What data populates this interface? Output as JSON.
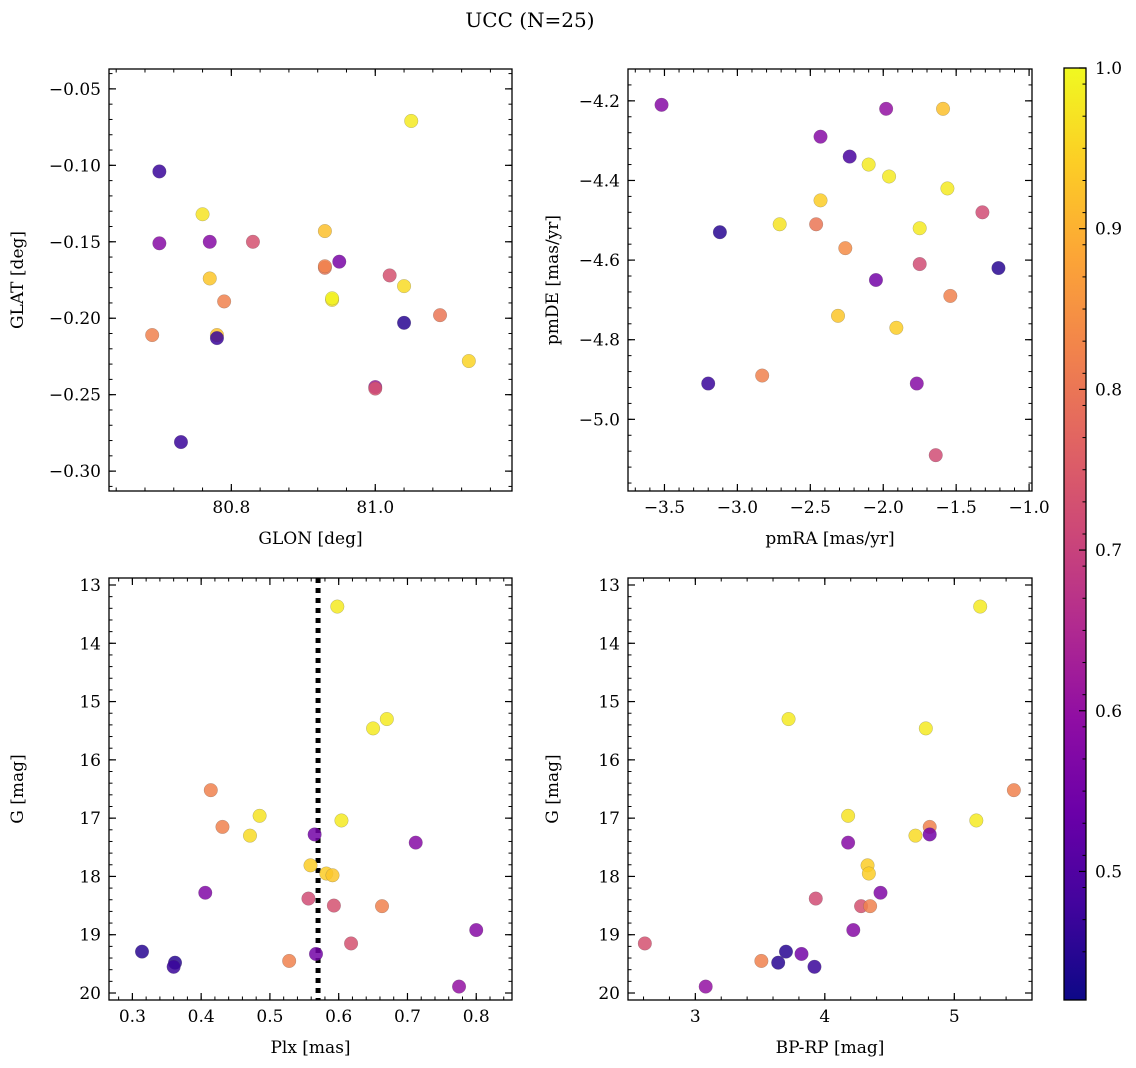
{
  "suptitle": "UCC (N=25)",
  "chart_data": [
    {
      "type": "scatter",
      "xlabel": "GLON [deg]",
      "ylabel": "GLAT [deg]",
      "xlim": [
        80.63,
        81.19
      ],
      "ylim": [
        -0.313,
        -0.037
      ],
      "xticks": [
        80.8,
        81.0
      ],
      "xtick_labels": [
        "80.8",
        "81.0"
      ],
      "yticks": [
        -0.05,
        -0.1,
        -0.15,
        -0.2,
        -0.25,
        -0.3
      ],
      "ytick_labels": [
        "−0.05",
        "−0.10",
        "−0.15",
        "−0.20",
        "−0.25",
        "−0.30"
      ],
      "points": [
        {
          "x": 81.05,
          "y": -0.071,
          "c": 0.98
        },
        {
          "x": 80.7,
          "y": -0.104,
          "c": 0.47
        },
        {
          "x": 80.76,
          "y": -0.132,
          "c": 0.97
        },
        {
          "x": 80.7,
          "y": -0.151,
          "c": 0.58
        },
        {
          "x": 80.77,
          "y": -0.15,
          "c": 0.58
        },
        {
          "x": 80.83,
          "y": -0.15,
          "c": 0.73
        },
        {
          "x": 80.93,
          "y": -0.143,
          "c": 0.92
        },
        {
          "x": 80.95,
          "y": -0.163,
          "c": 0.56
        },
        {
          "x": 80.93,
          "y": -0.167,
          "c": 0.8
        },
        {
          "x": 80.77,
          "y": -0.174,
          "c": 0.93
        },
        {
          "x": 81.02,
          "y": -0.172,
          "c": 0.73
        },
        {
          "x": 81.04,
          "y": -0.179,
          "c": 0.96
        },
        {
          "x": 80.79,
          "y": -0.189,
          "c": 0.82
        },
        {
          "x": 80.94,
          "y": -0.188,
          "c": 0.97
        },
        {
          "x": 81.04,
          "y": -0.203,
          "c": 0.45
        },
        {
          "x": 81.09,
          "y": -0.198,
          "c": 0.8
        },
        {
          "x": 80.69,
          "y": -0.211,
          "c": 0.82
        },
        {
          "x": 80.78,
          "y": -0.211,
          "c": 0.92
        },
        {
          "x": 80.78,
          "y": -0.213,
          "c": 0.47
        },
        {
          "x": 81.13,
          "y": -0.228,
          "c": 0.95
        },
        {
          "x": 81.0,
          "y": -0.245,
          "c": 0.62
        },
        {
          "x": 81.0,
          "y": -0.246,
          "c": 0.73
        },
        {
          "x": 80.73,
          "y": -0.281,
          "c": 0.47
        },
        {
          "x": 80.94,
          "y": -0.187,
          "c": 0.99
        },
        {
          "x": 80.93,
          "y": -0.166,
          "c": 0.82
        }
      ]
    },
    {
      "type": "scatter",
      "xlabel": "pmRA [mas/yr]",
      "ylabel": "pmDE [mas/yr]",
      "xlim": [
        -3.75,
        -0.98
      ],
      "ylim": [
        -5.18,
        -4.12
      ],
      "xticks": [
        -3.5,
        -3.0,
        -2.5,
        -2.0,
        -1.5,
        -1.0
      ],
      "xtick_labels": [
        "−3.5",
        "−3.0",
        "−2.5",
        "−2.0",
        "−1.5",
        "−1.0"
      ],
      "yticks": [
        -4.2,
        -4.4,
        -4.6,
        -4.8,
        -5.0
      ],
      "ytick_labels": [
        "−4.2",
        "−4.4",
        "−4.6",
        "−4.8",
        "−5.0"
      ],
      "points": [
        {
          "x": -3.52,
          "y": -4.21,
          "c": 0.58
        },
        {
          "x": -1.98,
          "y": -4.22,
          "c": 0.6
        },
        {
          "x": -1.59,
          "y": -4.22,
          "c": 0.92
        },
        {
          "x": -2.43,
          "y": -4.29,
          "c": 0.58
        },
        {
          "x": -2.23,
          "y": -4.34,
          "c": 0.49
        },
        {
          "x": -2.1,
          "y": -4.36,
          "c": 0.98
        },
        {
          "x": -1.96,
          "y": -4.39,
          "c": 0.98
        },
        {
          "x": -1.56,
          "y": -4.42,
          "c": 0.98
        },
        {
          "x": -2.43,
          "y": -4.45,
          "c": 0.94
        },
        {
          "x": -1.32,
          "y": -4.48,
          "c": 0.72
        },
        {
          "x": -2.71,
          "y": -4.51,
          "c": 0.97
        },
        {
          "x": -2.46,
          "y": -4.51,
          "c": 0.8
        },
        {
          "x": -1.75,
          "y": -4.52,
          "c": 0.98
        },
        {
          "x": -3.12,
          "y": -4.53,
          "c": 0.45
        },
        {
          "x": -2.26,
          "y": -4.57,
          "c": 0.84
        },
        {
          "x": -1.75,
          "y": -4.61,
          "c": 0.72
        },
        {
          "x": -1.21,
          "y": -4.62,
          "c": 0.45
        },
        {
          "x": -2.05,
          "y": -4.65,
          "c": 0.55
        },
        {
          "x": -1.54,
          "y": -4.69,
          "c": 0.82
        },
        {
          "x": -2.31,
          "y": -4.74,
          "c": 0.93
        },
        {
          "x": -1.91,
          "y": -4.77,
          "c": 0.94
        },
        {
          "x": -2.83,
          "y": -4.89,
          "c": 0.82
        },
        {
          "x": -3.2,
          "y": -4.91,
          "c": 0.47
        },
        {
          "x": -1.77,
          "y": -4.91,
          "c": 0.58
        },
        {
          "x": -1.64,
          "y": -5.09,
          "c": 0.72
        }
      ]
    },
    {
      "type": "scatter",
      "xlabel": "Plx [mas]",
      "ylabel": "G [mag]",
      "xlim": [
        0.266,
        0.852
      ],
      "ylim": [
        20.12,
        12.88
      ],
      "y_inverted": true,
      "vline": {
        "x": 0.57,
        "style": "dotted",
        "color": "#000000"
      },
      "xticks": [
        0.3,
        0.4,
        0.5,
        0.6,
        0.7,
        0.8
      ],
      "xtick_labels": [
        "0.3",
        "0.4",
        "0.5",
        "0.6",
        "0.7",
        "0.8"
      ],
      "yticks": [
        13,
        14,
        15,
        16,
        17,
        18,
        19,
        20
      ],
      "ytick_labels": [
        "13",
        "14",
        "15",
        "16",
        "17",
        "18",
        "19",
        "20"
      ],
      "points": [
        {
          "x": 0.598,
          "y": 13.37,
          "c": 0.98
        },
        {
          "x": 0.67,
          "y": 15.3,
          "c": 0.98
        },
        {
          "x": 0.65,
          "y": 15.46,
          "c": 0.98
        },
        {
          "x": 0.414,
          "y": 16.52,
          "c": 0.82
        },
        {
          "x": 0.485,
          "y": 16.96,
          "c": 0.97
        },
        {
          "x": 0.604,
          "y": 17.04,
          "c": 0.98
        },
        {
          "x": 0.431,
          "y": 17.15,
          "c": 0.82
        },
        {
          "x": 0.471,
          "y": 17.3,
          "c": 0.96
        },
        {
          "x": 0.565,
          "y": 17.28,
          "c": 0.55
        },
        {
          "x": 0.712,
          "y": 17.42,
          "c": 0.58
        },
        {
          "x": 0.559,
          "y": 17.81,
          "c": 0.94
        },
        {
          "x": 0.582,
          "y": 17.95,
          "c": 0.94
        },
        {
          "x": 0.591,
          "y": 17.98,
          "c": 0.93
        },
        {
          "x": 0.406,
          "y": 18.28,
          "c": 0.57
        },
        {
          "x": 0.556,
          "y": 18.38,
          "c": 0.72
        },
        {
          "x": 0.593,
          "y": 18.5,
          "c": 0.73
        },
        {
          "x": 0.663,
          "y": 18.51,
          "c": 0.82
        },
        {
          "x": 0.618,
          "y": 19.15,
          "c": 0.73
        },
        {
          "x": 0.8,
          "y": 18.92,
          "c": 0.58
        },
        {
          "x": 0.314,
          "y": 19.29,
          "c": 0.45
        },
        {
          "x": 0.567,
          "y": 19.33,
          "c": 0.55
        },
        {
          "x": 0.528,
          "y": 19.45,
          "c": 0.82
        },
        {
          "x": 0.362,
          "y": 19.48,
          "c": 0.45
        },
        {
          "x": 0.36,
          "y": 19.55,
          "c": 0.47
        },
        {
          "x": 0.775,
          "y": 19.89,
          "c": 0.6
        }
      ]
    },
    {
      "type": "scatter",
      "xlabel": "BP-RP [mag]",
      "ylabel": "G [mag]",
      "xlim": [
        2.48,
        5.6
      ],
      "ylim": [
        20.12,
        12.88
      ],
      "y_inverted": true,
      "xticks": [
        3,
        4,
        5
      ],
      "xtick_labels": [
        "3",
        "4",
        "5"
      ],
      "yticks": [
        13,
        14,
        15,
        16,
        17,
        18,
        19,
        20
      ],
      "ytick_labels": [
        "13",
        "14",
        "15",
        "16",
        "17",
        "18",
        "19",
        "20"
      ],
      "points": [
        {
          "x": 5.2,
          "y": 13.37,
          "c": 0.98
        },
        {
          "x": 3.72,
          "y": 15.3,
          "c": 0.98
        },
        {
          "x": 4.78,
          "y": 15.46,
          "c": 0.98
        },
        {
          "x": 5.46,
          "y": 16.52,
          "c": 0.82
        },
        {
          "x": 4.18,
          "y": 16.96,
          "c": 0.97
        },
        {
          "x": 5.17,
          "y": 17.04,
          "c": 0.98
        },
        {
          "x": 4.81,
          "y": 17.15,
          "c": 0.82
        },
        {
          "x": 4.81,
          "y": 17.28,
          "c": 0.55
        },
        {
          "x": 4.7,
          "y": 17.3,
          "c": 0.96
        },
        {
          "x": 4.18,
          "y": 17.42,
          "c": 0.58
        },
        {
          "x": 4.33,
          "y": 17.81,
          "c": 0.94
        },
        {
          "x": 4.34,
          "y": 17.95,
          "c": 0.94
        },
        {
          "x": 4.43,
          "y": 18.28,
          "c": 0.57
        },
        {
          "x": 3.93,
          "y": 18.38,
          "c": 0.72
        },
        {
          "x": 4.28,
          "y": 18.51,
          "c": 0.73
        },
        {
          "x": 4.35,
          "y": 18.51,
          "c": 0.82
        },
        {
          "x": 4.22,
          "y": 18.92,
          "c": 0.58
        },
        {
          "x": 2.61,
          "y": 19.15,
          "c": 0.73
        },
        {
          "x": 3.7,
          "y": 19.29,
          "c": 0.45
        },
        {
          "x": 3.82,
          "y": 19.33,
          "c": 0.55
        },
        {
          "x": 3.51,
          "y": 19.45,
          "c": 0.82
        },
        {
          "x": 3.64,
          "y": 19.48,
          "c": 0.45
        },
        {
          "x": 3.92,
          "y": 19.55,
          "c": 0.47
        },
        {
          "x": 3.08,
          "y": 19.89,
          "c": 0.6
        }
      ]
    }
  ],
  "colorbar": {
    "colormap": "plasma",
    "range": [
      0.42,
      1.0
    ],
    "ticks": [
      0.5,
      0.6,
      0.7,
      0.8,
      0.9,
      1.0
    ],
    "tick_labels": [
      "0.5",
      "0.6",
      "0.7",
      "0.8",
      "0.9",
      "1.0"
    ]
  }
}
